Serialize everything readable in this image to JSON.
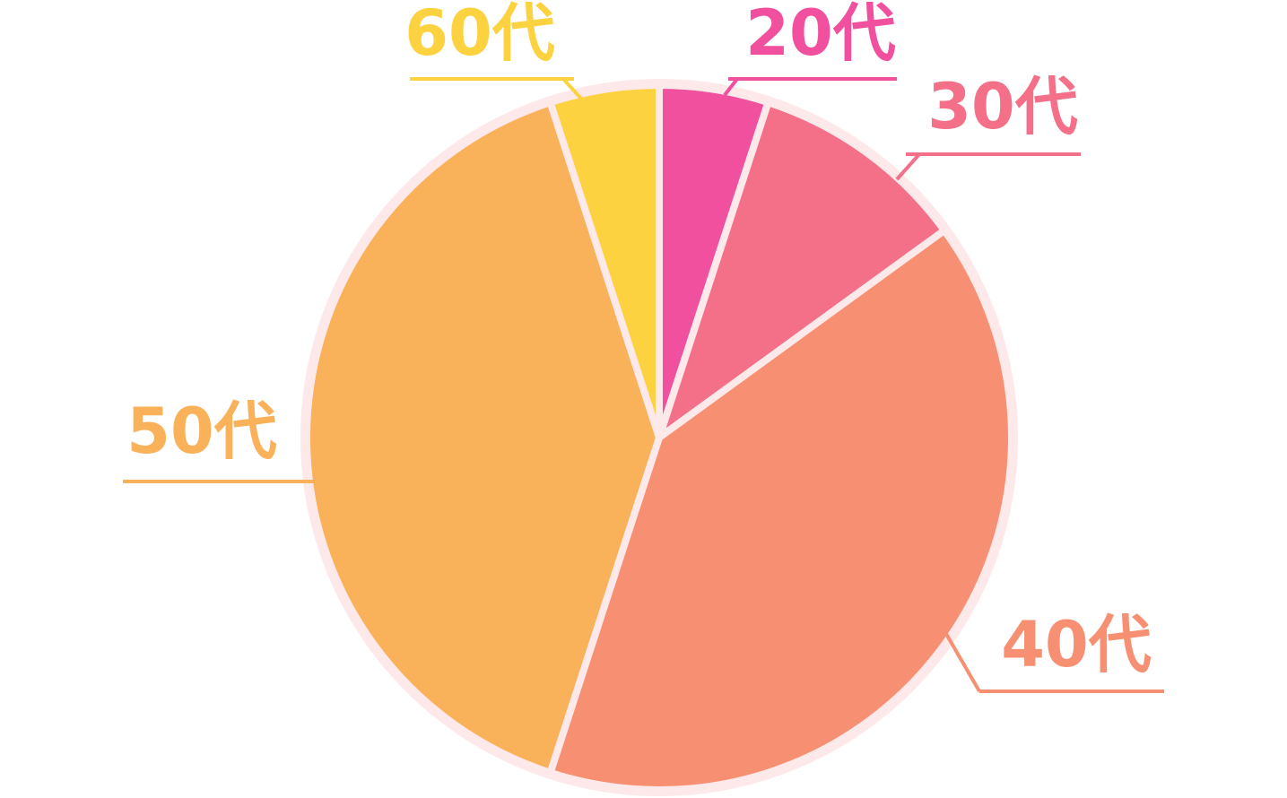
{
  "chart_data": {
    "type": "pie",
    "categories": [
      "20代",
      "30代",
      "40代",
      "50代",
      "60代"
    ],
    "values": [
      5,
      10,
      40,
      40,
      5
    ],
    "colors": [
      "#f0509e",
      "#f37088",
      "#f79072",
      "#f9b15a",
      "#fdd241"
    ]
  }
}
